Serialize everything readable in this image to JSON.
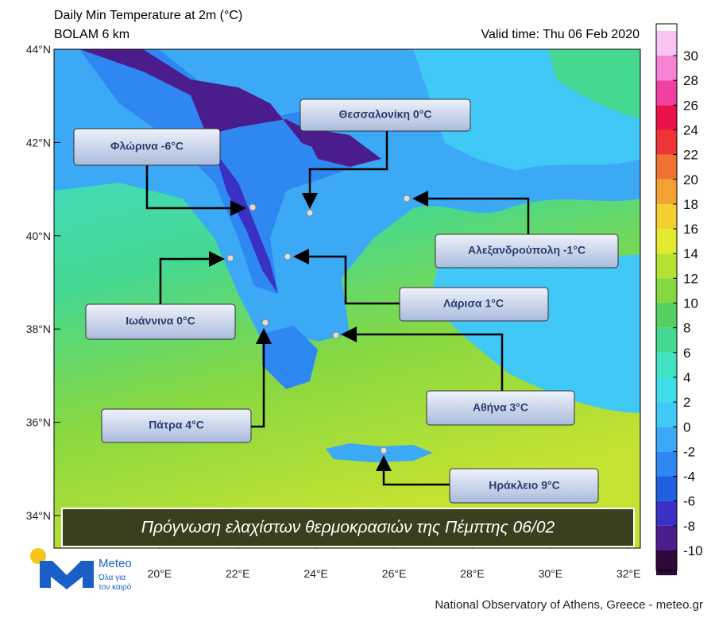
{
  "header": {
    "title": "Daily Min Temperature at 2m (°C)",
    "subtitle": "BOLAM 6 km",
    "valid_time": "Valid time: Thu 06 Feb 2020"
  },
  "map": {
    "lat_ticks": [
      {
        "value": 44,
        "label": "44°N"
      },
      {
        "value": 42,
        "label": "42°N"
      },
      {
        "value": 40,
        "label": "40°N"
      },
      {
        "value": 38,
        "label": "38°N"
      },
      {
        "value": 36,
        "label": "36°N"
      },
      {
        "value": 34,
        "label": "34°N"
      }
    ],
    "lon_ticks": [
      {
        "value": 20,
        "label": "20°E"
      },
      {
        "value": 22,
        "label": "22°E"
      },
      {
        "value": 24,
        "label": "24°E"
      },
      {
        "value": 26,
        "label": "26°E"
      },
      {
        "value": 28,
        "label": "28°E"
      },
      {
        "value": 30,
        "label": "30°E"
      },
      {
        "value": 32,
        "label": "32°E"
      }
    ],
    "lat_range": [
      44,
      33.3
    ],
    "lon_range": [
      17.3,
      32.3
    ]
  },
  "colorbar": {
    "ticks": [
      -10,
      -8,
      -6,
      -4,
      -2,
      0,
      2,
      4,
      6,
      8,
      10,
      12,
      14,
      16,
      18,
      20,
      22,
      24,
      26,
      28,
      30
    ],
    "colors": [
      "#2e0838",
      "#4a1c8c",
      "#3a30c4",
      "#1f5fe0",
      "#2f88f2",
      "#3ba9f6",
      "#40c8f6",
      "#3fdde8",
      "#40e2c2",
      "#45d891",
      "#55d060",
      "#86d842",
      "#b4e232",
      "#e2ea30",
      "#f2d032",
      "#f2a232",
      "#f07232",
      "#ee3434",
      "#e81248",
      "#f040a2",
      "#f584d4",
      "#f9c4f2",
      "#ffffff"
    ]
  },
  "cities": [
    {
      "label": "Θεσσαλονίκη 0°C"
    },
    {
      "label": "Φλώρινα -6°C"
    },
    {
      "label": "Αλεξανδρούπολη -1°C"
    },
    {
      "label": "Ιωάννινα 0°C"
    },
    {
      "label": "Λάρισα 1°C"
    },
    {
      "label": "Πάτρα 4°C"
    },
    {
      "label": "Αθήνα 3°C"
    },
    {
      "label": "Ηράκλειο 9°C"
    }
  ],
  "banner": "Πρόγνωση ελαχίστων θερμοκρασιών της Πέμπτης 06/02",
  "logo": {
    "name": "Meteo",
    "tagline_1": "Όλα για",
    "tagline_2": "τον καιρό"
  },
  "footer": "National Observatory of Athens, Greece - meteo.gr"
}
